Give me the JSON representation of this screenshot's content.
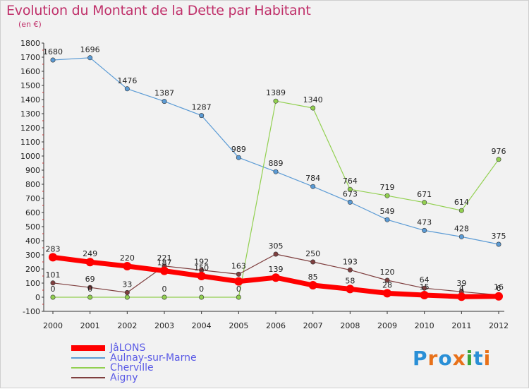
{
  "title": "Evolution du Montant de la Dette par Habitant",
  "unit": "(en €)",
  "logo": {
    "letters": [
      "P",
      "r",
      "o",
      "x",
      "i",
      "t",
      "i"
    ],
    "colors": [
      "#2a8fd6",
      "#e8711a",
      "#2a8fd6",
      "#e8711a",
      "#3aa63a",
      "#2a8fd6",
      "#e8711a"
    ]
  },
  "chart_data": {
    "type": "line",
    "title": "Evolution du Montant de la Dette par Habitant",
    "ylabel": "(en €)",
    "ylim": [
      -100,
      1800
    ],
    "yticks": [
      -100,
      0,
      100,
      200,
      300,
      400,
      500,
      600,
      700,
      800,
      900,
      1000,
      1100,
      1200,
      1300,
      1400,
      1500,
      1600,
      1700,
      1800
    ],
    "x": [
      "2000",
      "2001",
      "2002",
      "2003",
      "2004",
      "2005",
      "2006",
      "2007",
      "2008",
      "2009",
      "2010",
      "2011",
      "2012"
    ],
    "grid": false,
    "legend": "bottom-left",
    "series": [
      {
        "name": "JâLONS",
        "color": "#ff0000",
        "values": [
          283,
          249,
          220,
          187,
          150,
          112,
          139,
          85,
          58,
          28,
          15,
          4,
          6
        ],
        "labels": [
          "283",
          "249",
          "220",
          "187",
          "150",
          "",
          "139",
          "85",
          "58",
          "28",
          "15",
          "4",
          "6"
        ]
      },
      {
        "name": "Aulnay-sur-Marne",
        "color": "#5b9bd5",
        "values": [
          1680,
          1696,
          1476,
          1387,
          1287,
          989,
          889,
          784,
          673,
          549,
          473,
          428,
          375
        ],
        "labels": [
          "1680",
          "1696",
          "1476",
          "1387",
          "1287",
          "989",
          "889",
          "784",
          "673",
          "549",
          "473",
          "428",
          "375"
        ]
      },
      {
        "name": "Cherville",
        "color": "#92d050",
        "values": [
          0,
          0,
          0,
          0,
          0,
          0,
          1389,
          1340,
          764,
          719,
          671,
          614,
          976
        ],
        "labels": [
          "0",
          "0",
          "",
          "0",
          "0",
          "0",
          "1389",
          "1340",
          "764",
          "719",
          "671",
          "614",
          "976"
        ]
      },
      {
        "name": "Aigny",
        "color": "#7f3f3f",
        "values": [
          101,
          69,
          33,
          221,
          192,
          163,
          305,
          250,
          193,
          120,
          64,
          39,
          16
        ],
        "labels": [
          "101",
          "69",
          "33",
          "221",
          "192",
          "163",
          "305",
          "250",
          "193",
          "120",
          "64",
          "39",
          "16"
        ]
      }
    ]
  }
}
